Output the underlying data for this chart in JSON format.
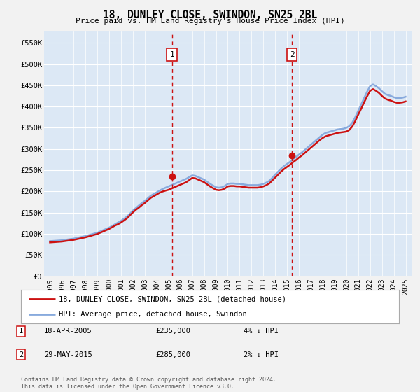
{
  "title": "18, DUNLEY CLOSE, SWINDON, SN25 2BL",
  "subtitle": "Price paid vs. HM Land Registry's House Price Index (HPI)",
  "fig_facecolor": "#f2f2f2",
  "plot_bg_color": "#dce8f5",
  "ylim": [
    0,
    577000
  ],
  "yticks": [
    0,
    50000,
    100000,
    150000,
    200000,
    250000,
    300000,
    350000,
    400000,
    450000,
    500000,
    550000
  ],
  "ytick_labels": [
    "£0",
    "£50K",
    "£100K",
    "£150K",
    "£200K",
    "£250K",
    "£300K",
    "£350K",
    "£400K",
    "£450K",
    "£500K",
    "£550K"
  ],
  "xlim_start": 1994.5,
  "xlim_end": 2025.5,
  "sale1_x": 2005.29,
  "sale1_y": 235000,
  "sale2_x": 2015.41,
  "sale2_y": 285000,
  "legend_line1": "18, DUNLEY CLOSE, SWINDON, SN25 2BL (detached house)",
  "legend_line2": "HPI: Average price, detached house, Swindon",
  "annotation1_date": "18-APR-2005",
  "annotation1_price": "£235,000",
  "annotation1_hpi": "4% ↓ HPI",
  "annotation2_date": "29-MAY-2015",
  "annotation2_price": "£285,000",
  "annotation2_hpi": "2% ↓ HPI",
  "footer": "Contains HM Land Registry data © Crown copyright and database right 2024.\nThis data is licensed under the Open Government Licence v3.0.",
  "hpi_x": [
    1995.0,
    1995.25,
    1995.5,
    1995.75,
    1996.0,
    1996.25,
    1996.5,
    1996.75,
    1997.0,
    1997.25,
    1997.5,
    1997.75,
    1998.0,
    1998.25,
    1998.5,
    1998.75,
    1999.0,
    1999.25,
    1999.5,
    1999.75,
    2000.0,
    2000.25,
    2000.5,
    2000.75,
    2001.0,
    2001.25,
    2001.5,
    2001.75,
    2002.0,
    2002.25,
    2002.5,
    2002.75,
    2003.0,
    2003.25,
    2003.5,
    2003.75,
    2004.0,
    2004.25,
    2004.5,
    2004.75,
    2005.0,
    2005.25,
    2005.5,
    2005.75,
    2006.0,
    2006.25,
    2006.5,
    2006.75,
    2007.0,
    2007.25,
    2007.5,
    2007.75,
    2008.0,
    2008.25,
    2008.5,
    2008.75,
    2009.0,
    2009.25,
    2009.5,
    2009.75,
    2010.0,
    2010.25,
    2010.5,
    2010.75,
    2011.0,
    2011.25,
    2011.5,
    2011.75,
    2012.0,
    2012.25,
    2012.5,
    2012.75,
    2013.0,
    2013.25,
    2013.5,
    2013.75,
    2014.0,
    2014.25,
    2014.5,
    2014.75,
    2015.0,
    2015.25,
    2015.5,
    2015.75,
    2016.0,
    2016.25,
    2016.5,
    2016.75,
    2017.0,
    2017.25,
    2017.5,
    2017.75,
    2018.0,
    2018.25,
    2018.5,
    2018.75,
    2019.0,
    2019.25,
    2019.5,
    2019.75,
    2020.0,
    2020.25,
    2020.5,
    2020.75,
    2021.0,
    2021.25,
    2021.5,
    2021.75,
    2022.0,
    2022.25,
    2022.5,
    2022.75,
    2023.0,
    2023.25,
    2023.5,
    2023.75,
    2024.0,
    2024.25,
    2024.5,
    2024.75,
    2025.0
  ],
  "hpi_y": [
    83000,
    83500,
    84000,
    84500,
    85000,
    86000,
    87000,
    88000,
    89000,
    90500,
    92000,
    93500,
    95000,
    97000,
    99000,
    101000,
    103000,
    106000,
    109000,
    112000,
    115000,
    119000,
    123000,
    127000,
    131000,
    136000,
    141000,
    148000,
    155000,
    161000,
    167000,
    173000,
    178000,
    184000,
    190000,
    194000,
    198000,
    202000,
    206000,
    209000,
    212000,
    215000,
    218000,
    221000,
    224000,
    227000,
    230000,
    234000,
    238000,
    237000,
    234000,
    231000,
    228000,
    223000,
    218000,
    214000,
    210000,
    209000,
    210000,
    213000,
    218000,
    219000,
    219000,
    218000,
    218000,
    217000,
    216000,
    215000,
    215000,
    215000,
    215000,
    216000,
    218000,
    221000,
    225000,
    232000,
    240000,
    247000,
    254000,
    260000,
    265000,
    270000,
    276000,
    281000,
    287000,
    292000,
    298000,
    304000,
    310000,
    316000,
    322000,
    328000,
    334000,
    338000,
    340000,
    342000,
    344000,
    346000,
    347000,
    348000,
    350000,
    354000,
    362000,
    375000,
    390000,
    405000,
    420000,
    435000,
    448000,
    452000,
    448000,
    443000,
    436000,
    430000,
    427000,
    425000,
    422000,
    420000,
    420000,
    421000,
    423000
  ],
  "prop_y": [
    80000,
    80500,
    81000,
    81500,
    82000,
    83000,
    84000,
    85000,
    86000,
    87500,
    89000,
    90500,
    92000,
    94000,
    96000,
    98000,
    100000,
    103000,
    106000,
    109000,
    112000,
    116000,
    120000,
    123000,
    127000,
    132000,
    137000,
    144000,
    151000,
    157000,
    162000,
    168000,
    173000,
    179000,
    185000,
    189000,
    193000,
    197000,
    200000,
    202000,
    204000,
    207000,
    210000,
    213000,
    216000,
    219000,
    222000,
    227000,
    232000,
    231000,
    228000,
    225000,
    222000,
    217000,
    212000,
    208000,
    204000,
    203000,
    204000,
    207000,
    212000,
    213000,
    213000,
    212000,
    212000,
    211000,
    210000,
    209000,
    209000,
    209000,
    209000,
    210000,
    212000,
    215000,
    219000,
    226000,
    233000,
    240000,
    247000,
    253000,
    258000,
    263000,
    269000,
    274000,
    280000,
    285000,
    291000,
    297000,
    303000,
    309000,
    315000,
    321000,
    326000,
    330000,
    332000,
    334000,
    336000,
    338000,
    339000,
    340000,
    341000,
    345000,
    353000,
    366000,
    381000,
    395000,
    410000,
    424000,
    437000,
    441000,
    437000,
    432000,
    425000,
    419000,
    416000,
    414000,
    411000,
    409000,
    409000,
    410000,
    412000
  ]
}
